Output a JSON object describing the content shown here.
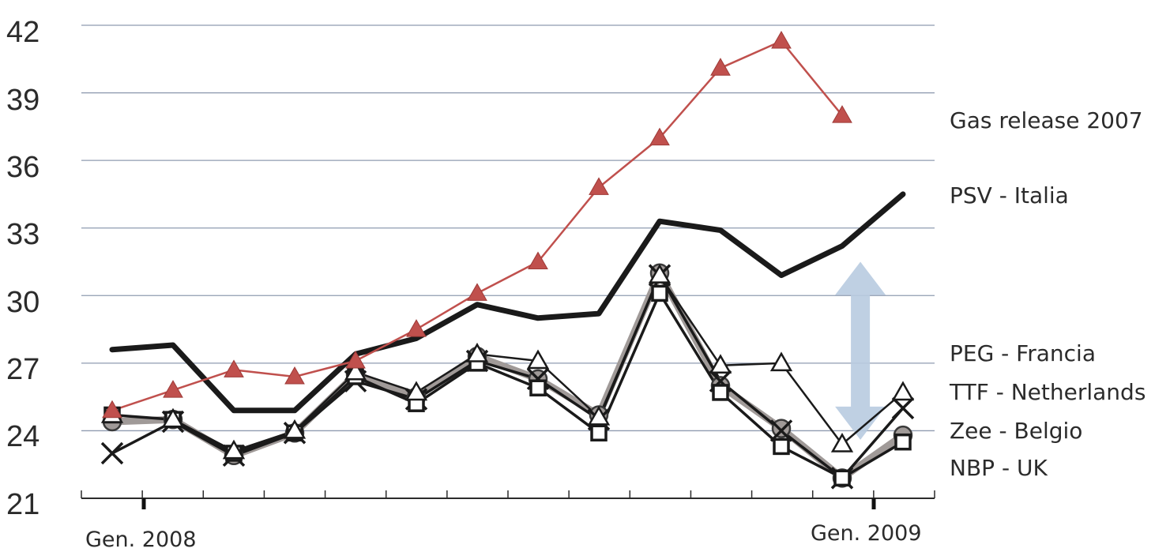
{
  "chart_data": {
    "type": "line",
    "title": "",
    "xlabel": "",
    "ylabel": "",
    "ylim": [
      21,
      42
    ],
    "yticks": [
      21,
      24,
      27,
      30,
      33,
      36,
      39,
      42
    ],
    "x_tick_labels": [
      {
        "label": "Gen. 2008",
        "month": 1
      },
      {
        "label": "Gen. 2009",
        "month": 13
      }
    ],
    "grid": true,
    "colors": {
      "accent_red": "#c0504d",
      "line_dark": "#1a1a1a",
      "line_gray": "#a09a98",
      "arrow": "#b8cbe0"
    },
    "series": [
      {
        "name": "Gas release 2007",
        "marker": "triangle",
        "color": "#c0504d",
        "x": [
          1,
          2,
          3,
          4,
          5,
          6,
          7,
          8,
          9,
          10,
          11,
          12,
          13
        ],
        "values": [
          24.9,
          25.8,
          26.7,
          26.4,
          27.1,
          28.5,
          30.1,
          31.5,
          34.8,
          37.0,
          40.1,
          41.3,
          38.0
        ]
      },
      {
        "name": "PSV - Italia",
        "marker": "none",
        "color": "#1a1a1a",
        "x": [
          1,
          2,
          3,
          4,
          5,
          6,
          7,
          8,
          9,
          10,
          11,
          12,
          13,
          14
        ],
        "values": [
          27.6,
          27.8,
          24.9,
          24.9,
          27.4,
          28.1,
          29.6,
          29.0,
          29.2,
          33.3,
          32.9,
          30.9,
          32.2,
          34.5
        ]
      },
      {
        "name": "PEG - Francia",
        "marker": "triangle-open",
        "color": "#1a1a1a",
        "x": [
          1,
          2,
          3,
          4,
          5,
          6,
          7,
          8,
          9,
          10,
          11,
          12,
          13,
          14
        ],
        "values": [
          24.7,
          24.5,
          23.1,
          24.0,
          26.6,
          25.7,
          27.4,
          27.1,
          24.6,
          30.9,
          26.9,
          27.0,
          23.4,
          25.7
        ]
      },
      {
        "name": "TTF - Netherlands",
        "marker": "square-open",
        "color": "#1a1a1a",
        "x": [
          1,
          2,
          3,
          4,
          5,
          6,
          7,
          8,
          9,
          10,
          11,
          12,
          13,
          14
        ],
        "values": [
          24.7,
          24.5,
          23.0,
          23.9,
          26.4,
          25.2,
          27.0,
          25.9,
          23.9,
          30.1,
          25.7,
          23.3,
          21.9,
          23.5
        ]
      },
      {
        "name": "Zee - Belgio",
        "marker": "cross",
        "color": "#1a1a1a",
        "x": [
          1,
          2,
          3,
          4,
          5,
          6,
          7,
          8,
          9,
          10,
          11,
          12,
          13,
          14
        ],
        "values": [
          23.0,
          24.4,
          22.9,
          23.9,
          26.2,
          25.4,
          27.1,
          26.3,
          24.5,
          30.9,
          26.2,
          24.0,
          21.9,
          25.0
        ]
      },
      {
        "name": "NBP - UK",
        "marker": "circle",
        "color": "#a09a98",
        "x": [
          1,
          2,
          3,
          4,
          5,
          6,
          7,
          8,
          9,
          10,
          11,
          12,
          13,
          14
        ],
        "values": [
          24.4,
          24.5,
          22.9,
          23.9,
          26.5,
          25.5,
          27.3,
          26.3,
          24.7,
          31.0,
          26.0,
          24.1,
          21.9,
          23.8
        ]
      }
    ],
    "annotations": [
      {
        "type": "double-arrow",
        "label": "",
        "x": 13.3,
        "y_from": 23.6,
        "y_to": 31.5
      }
    ]
  }
}
